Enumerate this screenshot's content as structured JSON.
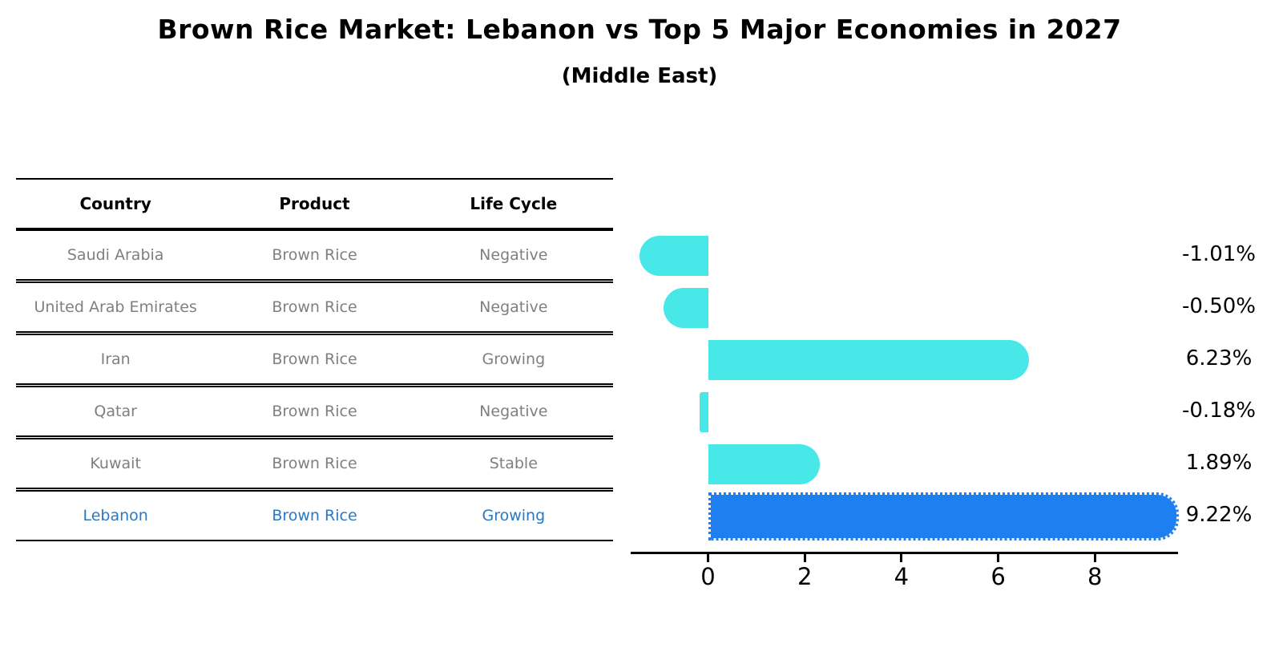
{
  "title": "Brown Rice Market: Lebanon vs Top 5 Major Economies in 2027",
  "subtitle": "(Middle East)",
  "table": {
    "headers": [
      "Country",
      "Product",
      "Life Cycle"
    ],
    "rows": [
      {
        "country": "Saudi Arabia",
        "product": "Brown Rice",
        "life_cycle": "Negative",
        "highlighted": false
      },
      {
        "country": "United Arab Emirates",
        "product": "Brown Rice",
        "life_cycle": "Negative",
        "highlighted": false
      },
      {
        "country": "Iran",
        "product": "Brown Rice",
        "life_cycle": "Growing",
        "highlighted": false
      },
      {
        "country": "Qatar",
        "product": "Brown Rice",
        "life_cycle": "Negative",
        "highlighted": false
      },
      {
        "country": "Kuwait",
        "product": "Brown Rice",
        "life_cycle": "Stable",
        "highlighted": false
      },
      {
        "country": "Lebanon",
        "product": "Brown Rice",
        "life_cycle": "Growing",
        "highlighted": true
      }
    ]
  },
  "chart_data": {
    "type": "bar",
    "orientation": "horizontal",
    "title": "Brown Rice Market: Lebanon vs Top 5 Major Economies in 2027 (Middle East)",
    "categories": [
      "Saudi Arabia",
      "United Arab Emirates",
      "Iran",
      "Qatar",
      "Kuwait",
      "Lebanon"
    ],
    "values": [
      -1.01,
      -0.5,
      6.23,
      -0.18,
      1.89,
      9.22
    ],
    "value_labels": [
      "-1.01%",
      "-0.50%",
      "6.23%",
      "-0.18%",
      "1.89%",
      "9.22%"
    ],
    "xlabel": "",
    "ylabel": "",
    "xticks": [
      0,
      2,
      4,
      6,
      8
    ],
    "xlim": [
      -1.6,
      9.72
    ],
    "grid": false,
    "legend": false,
    "bar_color": "#49e8e8",
    "highlight_color": "#1e80f0",
    "highlight_index": 5,
    "highlight_text_color": "#2878c4",
    "highlight_style": "dotted-border",
    "bar_cap": "rounded-outer-end"
  }
}
